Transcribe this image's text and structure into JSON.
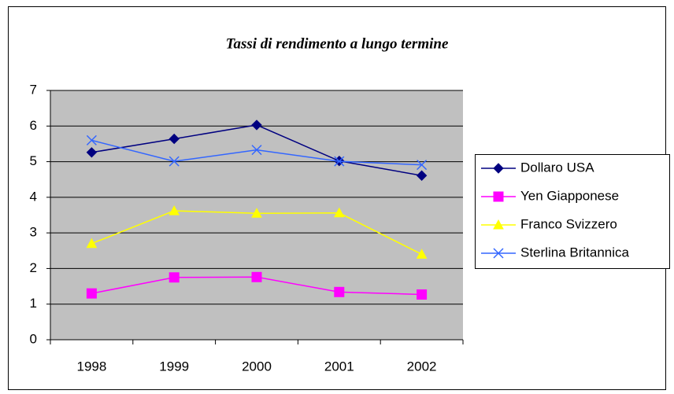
{
  "chart_data": {
    "type": "line",
    "title": "Tassi di rendimento a lungo termine",
    "categories": [
      "1998",
      "1999",
      "2000",
      "2001",
      "2002"
    ],
    "series": [
      {
        "name": "Dollaro USA",
        "color": "#000080",
        "marker": "diamond",
        "values": [
          5.26,
          5.64,
          6.03,
          5.02,
          4.61
        ]
      },
      {
        "name": "Yen Giapponese",
        "color": "#ff00ff",
        "marker": "square",
        "values": [
          1.3,
          1.75,
          1.76,
          1.34,
          1.27
        ]
      },
      {
        "name": "Franco Svizzero",
        "color": "#ffff00",
        "marker": "triangle",
        "values": [
          2.7,
          3.62,
          3.55,
          3.56,
          2.4
        ]
      },
      {
        "name": "Sterlina Britannica",
        "color": "#3366ff",
        "marker": "x",
        "values": [
          5.6,
          5.01,
          5.33,
          5.01,
          4.91
        ]
      }
    ],
    "ylim": [
      0,
      7
    ],
    "yticks": [
      0,
      1,
      2,
      3,
      4,
      5,
      6,
      7
    ],
    "grid": true,
    "legend": "right"
  }
}
